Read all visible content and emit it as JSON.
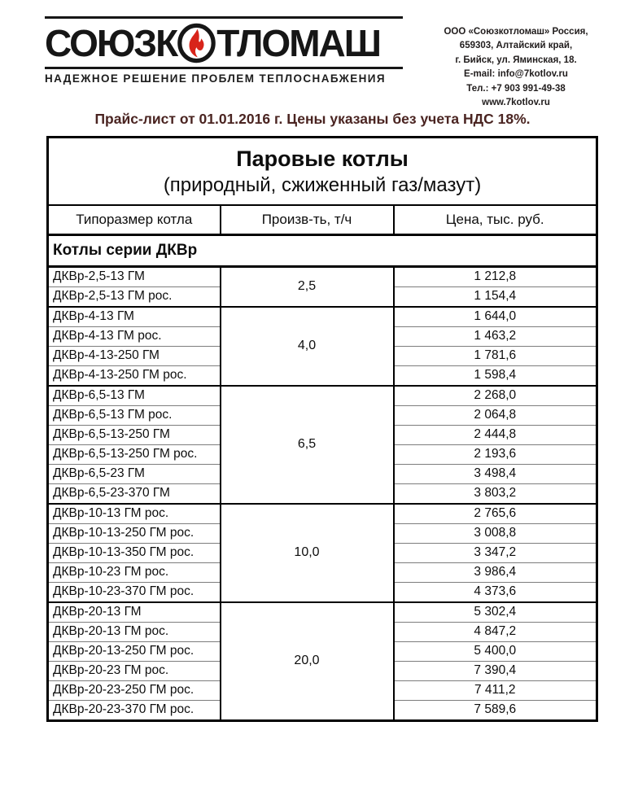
{
  "colors": {
    "note_text": "#4a2421",
    "flame": "#d8241a",
    "brand": "#161616"
  },
  "logo": {
    "brand_left": "СОЮЗК",
    "brand_right": "ТЛОМАШ",
    "tagline": "НАДЕЖНОЕ РЕШЕНИЕ ПРОБЛЕМ ТЕПЛОСНАБЖЕНИЯ"
  },
  "contact": {
    "lines": [
      "ООО «Союзкотломаш» Россия,",
      "659303, Алтайский край,",
      "г. Бийск, ул. Яминская, 18.",
      "E-mail: info@7kotlov.ru",
      "Тел.: +7 903 991-49-38",
      "www.7kotlov.ru"
    ]
  },
  "price_note": "Прайс-лист от 01.01.2016 г. Цены указаны без учета НДС 18%.",
  "table": {
    "title": "Паровые котлы",
    "subtitle": "(природный, сжиженный газ/мазут)",
    "columns": [
      "Типоразмер котла",
      "Произв-ть, т/ч",
      "Цена, тыс. руб."
    ],
    "section": "Котлы серии ДКВр",
    "groups": [
      {
        "capacity": "2,5",
        "rows": [
          [
            "ДКВр-2,5-13 ГМ",
            "1 212,8"
          ],
          [
            "ДКВр-2,5-13 ГМ рос.",
            "1 154,4"
          ]
        ]
      },
      {
        "capacity": "4,0",
        "rows": [
          [
            "ДКВр-4-13 ГМ",
            "1 644,0"
          ],
          [
            "ДКВр-4-13 ГМ рос.",
            "1 463,2"
          ],
          [
            "ДКВр-4-13-250 ГМ",
            "1 781,6"
          ],
          [
            "ДКВр-4-13-250 ГМ рос.",
            "1 598,4"
          ]
        ]
      },
      {
        "capacity": "6,5",
        "rows": [
          [
            "ДКВр-6,5-13 ГМ",
            "2 268,0"
          ],
          [
            "ДКВр-6,5-13 ГМ рос.",
            "2 064,8"
          ],
          [
            "ДКВр-6,5-13-250 ГМ",
            "2 444,8"
          ],
          [
            "ДКВр-6,5-13-250 ГМ рос.",
            "2 193,6"
          ],
          [
            "ДКВр-6,5-23 ГМ",
            "3 498,4"
          ],
          [
            "ДКВр-6,5-23-370 ГМ",
            "3 803,2"
          ]
        ]
      },
      {
        "capacity": "10,0",
        "rows": [
          [
            "ДКВр-10-13 ГМ рос.",
            "2 765,6"
          ],
          [
            "ДКВр-10-13-250 ГМ рос.",
            "3 008,8"
          ],
          [
            "ДКВр-10-13-350 ГМ рос.",
            "3 347,2"
          ],
          [
            "ДКВр-10-23 ГМ рос.",
            "3 986,4"
          ],
          [
            "ДКВр-10-23-370 ГМ рос.",
            "4 373,6"
          ]
        ]
      },
      {
        "capacity": "20,0",
        "rows": [
          [
            "ДКВр-20-13 ГМ",
            "5 302,4"
          ],
          [
            "ДКВр-20-13 ГМ рос.",
            "4 847,2"
          ],
          [
            "ДКВр-20-13-250 ГМ рос.",
            "5 400,0"
          ],
          [
            "ДКВр-20-23 ГМ рос.",
            "7 390,4"
          ],
          [
            "ДКВр-20-23-250 ГМ рос.",
            "7 411,2"
          ],
          [
            "ДКВр-20-23-370 ГМ рос.",
            "7 589,6"
          ]
        ]
      }
    ]
  }
}
